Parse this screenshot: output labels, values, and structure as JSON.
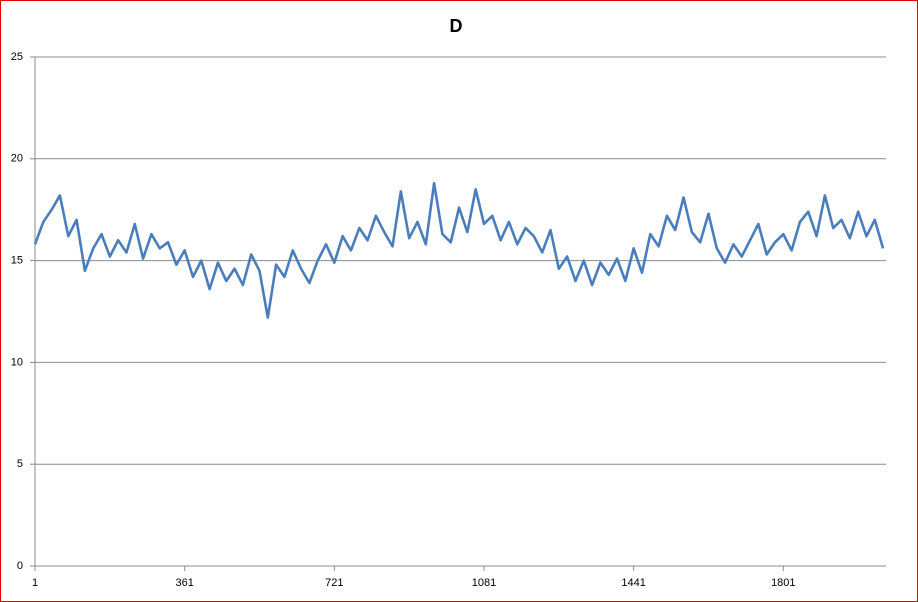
{
  "chart_data": {
    "type": "line",
    "title": "D",
    "x": [
      1,
      21,
      41,
      61,
      81,
      101,
      121,
      141,
      161,
      181,
      201,
      221,
      241,
      261,
      281,
      301,
      321,
      341,
      361,
      381,
      401,
      421,
      441,
      461,
      481,
      501,
      521,
      541,
      561,
      581,
      601,
      621,
      641,
      661,
      681,
      701,
      721,
      741,
      761,
      781,
      801,
      821,
      841,
      861,
      881,
      901,
      921,
      941,
      961,
      981,
      1001,
      1021,
      1041,
      1061,
      1081,
      1101,
      1121,
      1141,
      1161,
      1181,
      1201,
      1221,
      1241,
      1261,
      1281,
      1301,
      1321,
      1341,
      1361,
      1381,
      1401,
      1421,
      1441,
      1461,
      1481,
      1501,
      1521,
      1541,
      1561,
      1581,
      1601,
      1621,
      1641,
      1661,
      1681,
      1701,
      1721,
      1741,
      1761,
      1781,
      1801,
      1821,
      1841,
      1861,
      1881,
      1901,
      1921,
      1941,
      1961,
      1981,
      2001,
      2021,
      2041
    ],
    "series": [
      {
        "color": "#4a7ebb",
        "values": [
          15.8,
          16.9,
          17.5,
          18.2,
          16.2,
          17.0,
          14.5,
          15.6,
          16.3,
          15.2,
          16.0,
          15.4,
          16.8,
          15.1,
          16.3,
          15.6,
          15.9,
          14.8,
          15.5,
          14.2,
          15.0,
          13.6,
          14.9,
          14.0,
          14.6,
          13.8,
          15.3,
          14.5,
          12.2,
          14.8,
          14.2,
          15.5,
          14.6,
          13.9,
          15.0,
          15.8,
          14.9,
          16.2,
          15.5,
          16.6,
          16.0,
          17.2,
          16.4,
          15.7,
          18.4,
          16.1,
          16.9,
          15.8,
          18.8,
          16.3,
          15.9,
          17.6,
          16.4,
          18.5,
          16.8,
          17.2,
          16.0,
          16.9,
          15.8,
          16.6,
          16.2,
          15.4,
          16.5,
          14.6,
          15.2,
          14.0,
          15.0,
          13.8,
          14.9,
          14.3,
          15.1,
          14.0,
          15.6,
          14.4,
          16.3,
          15.7,
          17.2,
          16.5,
          18.1,
          16.4,
          15.9,
          17.3,
          15.6,
          14.9,
          15.8,
          15.2,
          16.0,
          16.8,
          15.3,
          15.9,
          16.3,
          15.5,
          16.9,
          17.4,
          16.2,
          18.2,
          16.6,
          17.0,
          16.1,
          17.4,
          16.2,
          17.0,
          15.6
        ]
      }
    ],
    "xlim": [
      1,
      2048
    ],
    "xticks": [
      1,
      361,
      721,
      1081,
      1441,
      1801
    ],
    "ylim": [
      0,
      25
    ],
    "yticks": [
      0,
      5,
      10,
      15,
      20,
      25
    ],
    "grid": true
  }
}
